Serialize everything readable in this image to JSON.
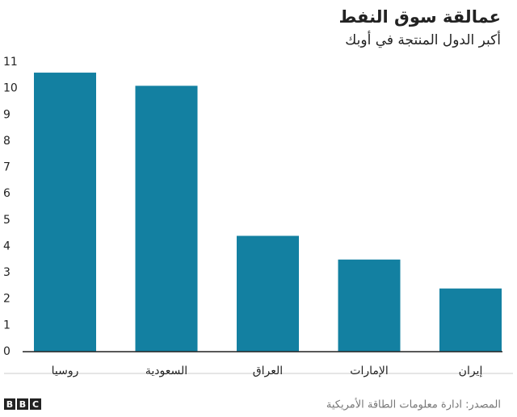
{
  "chart_data": {
    "type": "bar",
    "title": "عمالقة سوق النفط",
    "subtitle": "أكبر الدول المنتجة في أوبك",
    "categories": [
      "روسيا",
      "السعودية",
      "العراق",
      "الإمارات",
      "إيران"
    ],
    "values": [
      10.6,
      10.1,
      4.4,
      3.5,
      2.4
    ],
    "color": "#1380a1",
    "ylim": [
      0,
      11
    ],
    "yticks": [
      0,
      1,
      2,
      3,
      4,
      5,
      6,
      7,
      8,
      9,
      10,
      11
    ],
    "grid": false,
    "source": "المصدر: ادارة معلومات الطاقة الأمريكية",
    "logo": [
      "B",
      "B",
      "C"
    ]
  }
}
